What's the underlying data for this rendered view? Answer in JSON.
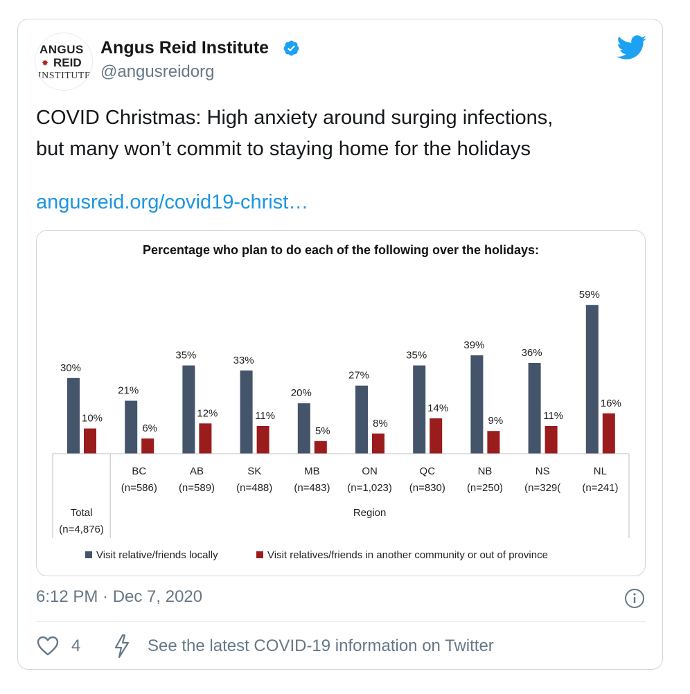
{
  "tweet": {
    "author_name": "Angus Reid Institute",
    "handle": "@angusreidorg",
    "avatar_text": [
      "ANGUS",
      "REID",
      "INSTITUTE"
    ],
    "text_line1": "COVID Christmas: High anxiety around surging infections,",
    "text_line2": "but many won’t commit to staying home for the holidays",
    "link": "angusreid.org/covid19-christ…",
    "timestamp": "6:12 PM · Dec 7, 2020",
    "like_count": "4",
    "covid_info": "See the latest COVID-19 information on Twitter"
  },
  "colors": {
    "series1": "#44546a",
    "series2": "#9b1c1c",
    "link": "#1b95e0",
    "twitter_blue": "#1da1f2"
  },
  "icons": [
    "verified-icon",
    "twitter-bird-icon",
    "info-icon",
    "heart-icon",
    "lightning-icon"
  ],
  "chart_data": {
    "type": "bar",
    "title": "Percentage who plan to do each of the following over the holidays:",
    "categories": [
      "Total",
      "BC",
      "AB",
      "SK",
      "MB",
      "ON",
      "QC",
      "NB",
      "NS",
      "NL"
    ],
    "category_n": [
      "(n=4,876)",
      "(n=586)",
      "(n=589)",
      "(n=488)",
      "(n=483)",
      "(n=1,023)",
      "(n=830)",
      "(n=250)",
      "(n=329(",
      "(n=241)"
    ],
    "group_label": "Region",
    "series": [
      {
        "name": "Visit relative/friends locally",
        "values": [
          30,
          21,
          35,
          33,
          20,
          27,
          35,
          39,
          36,
          59
        ],
        "labels": [
          "30%",
          "21%",
          "35%",
          "33%",
          "20%",
          "27%",
          "35%",
          "39%",
          "36%",
          "59%"
        ]
      },
      {
        "name": "Visit relatives/friends in another community or out of province",
        "values": [
          10,
          6,
          12,
          11,
          5,
          8,
          14,
          9,
          11,
          16
        ],
        "labels": [
          "10%",
          "6%",
          "12%",
          "11%",
          "5%",
          "8%",
          "14%",
          "9%",
          "11%",
          "16%"
        ]
      }
    ],
    "ylim": [
      0,
      60
    ],
    "legend_position": "bottom"
  }
}
